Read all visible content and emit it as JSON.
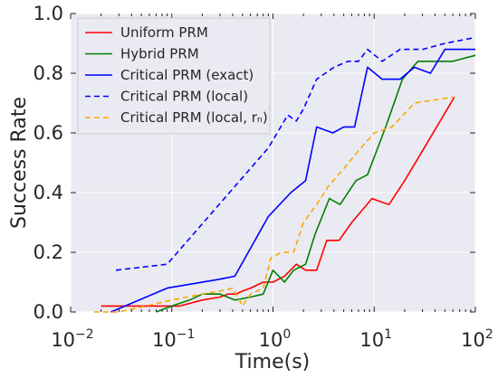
{
  "chart_data": {
    "type": "line",
    "xscale": "log",
    "xlim": [
      0.01,
      100
    ],
    "ylim": [
      0.0,
      1.0
    ],
    "xlabel": "Time(s)",
    "ylabel": "Success Rate",
    "grid": true,
    "background": "#EAEAF2",
    "legend_position": "upper-left",
    "x_ticks": [
      {
        "value": 0.01,
        "base": "10",
        "exp": "−2"
      },
      {
        "value": 0.1,
        "base": "10",
        "exp": "−1"
      },
      {
        "value": 1,
        "base": "10",
        "exp": "0"
      },
      {
        "value": 10,
        "base": "10",
        "exp": "1"
      },
      {
        "value": 100,
        "base": "10",
        "exp": "2"
      }
    ],
    "y_ticks": [
      {
        "value": 0.0,
        "label": "0.0"
      },
      {
        "value": 0.2,
        "label": "0.2"
      },
      {
        "value": 0.4,
        "label": "0.4"
      },
      {
        "value": 0.6,
        "label": "0.6"
      },
      {
        "value": 0.8,
        "label": "0.8"
      },
      {
        "value": 1.0,
        "label": "1.0"
      }
    ],
    "series": [
      {
        "name": "Uniform PRM",
        "color": "#FF0000",
        "style": "solid",
        "x": [
          0.02,
          0.05,
          0.12,
          0.2,
          0.3,
          0.36,
          0.43,
          0.5,
          0.6,
          0.8,
          1.0,
          1.3,
          1.7,
          2.1,
          2.7,
          3.4,
          4.5,
          6.0,
          9.5,
          14,
          20,
          30,
          62
        ],
        "y": [
          0.02,
          0.02,
          0.02,
          0.04,
          0.05,
          0.06,
          0.06,
          0.07,
          0.08,
          0.1,
          0.1,
          0.12,
          0.16,
          0.14,
          0.14,
          0.24,
          0.24,
          0.3,
          0.38,
          0.36,
          0.44,
          0.54,
          0.72
        ]
      },
      {
        "name": "Hybrid PRM",
        "color": "#008000",
        "style": "solid",
        "x": [
          0.07,
          0.1,
          0.15,
          0.2,
          0.3,
          0.42,
          0.6,
          0.8,
          1.0,
          1.3,
          1.6,
          2.1,
          2.6,
          3.6,
          4.6,
          6.6,
          8.6,
          13,
          19,
          27,
          40,
          60,
          100
        ],
        "y": [
          0.0,
          0.02,
          0.04,
          0.06,
          0.06,
          0.04,
          0.05,
          0.06,
          0.14,
          0.1,
          0.14,
          0.16,
          0.26,
          0.38,
          0.36,
          0.44,
          0.46,
          0.62,
          0.78,
          0.84,
          0.84,
          0.84,
          0.86
        ]
      },
      {
        "name": "Critical PRM (exact)",
        "color": "#0000FF",
        "style": "solid",
        "x": [
          0.025,
          0.09,
          0.3,
          0.42,
          0.9,
          1.5,
          2.1,
          2.7,
          3.9,
          5.0,
          6.4,
          8.6,
          12,
          18,
          25,
          36,
          50,
          100
        ],
        "y": [
          0.0,
          0.08,
          0.11,
          0.12,
          0.32,
          0.4,
          0.44,
          0.62,
          0.6,
          0.62,
          0.62,
          0.82,
          0.78,
          0.78,
          0.82,
          0.8,
          0.88,
          0.88
        ]
      },
      {
        "name": "Critical PRM (local)",
        "color": "#0000FF",
        "style": "dashed",
        "x": [
          0.028,
          0.09,
          0.9,
          1.4,
          1.7,
          2.0,
          2.7,
          4.0,
          5.5,
          7.0,
          8.6,
          12,
          18,
          30,
          50,
          100
        ],
        "y": [
          0.14,
          0.16,
          0.55,
          0.66,
          0.64,
          0.68,
          0.78,
          0.82,
          0.84,
          0.84,
          0.88,
          0.84,
          0.88,
          0.88,
          0.9,
          0.92
        ]
      },
      {
        "name": "Critical PRM (local, rₙ)",
        "color": "#FFA500",
        "style": "dashed",
        "x": [
          0.017,
          0.03,
          0.1,
          0.2,
          0.3,
          0.4,
          0.5,
          0.6,
          0.8,
          0.95,
          1.2,
          1.6,
          2.0,
          2.7,
          3.5,
          5.0,
          7.0,
          10,
          15,
          25,
          60
        ],
        "y": [
          0.0,
          0.0,
          0.04,
          0.06,
          0.07,
          0.08,
          0.02,
          0.06,
          0.08,
          0.18,
          0.2,
          0.2,
          0.3,
          0.36,
          0.42,
          0.48,
          0.54,
          0.6,
          0.62,
          0.7,
          0.72
        ]
      }
    ]
  }
}
